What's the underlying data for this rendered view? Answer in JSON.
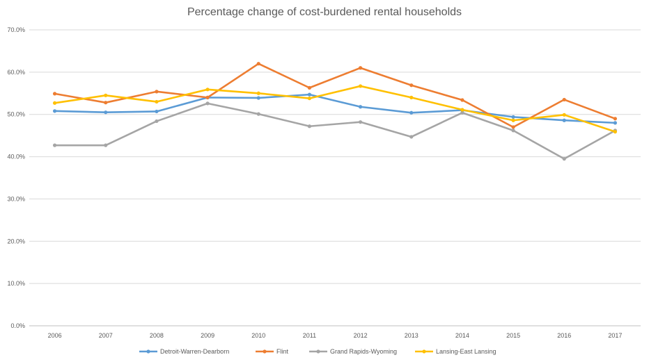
{
  "chart_data": {
    "type": "line",
    "title": "Percentage change of cost-burdened rental households",
    "xlabel": "",
    "ylabel": "",
    "categories": [
      "2006",
      "2007",
      "2008",
      "2009",
      "2010",
      "2011",
      "2012",
      "2013",
      "2014",
      "2015",
      "2016",
      "2017"
    ],
    "y_ticks": [
      "0.0%",
      "10.0%",
      "20.0%",
      "30.0%",
      "40.0%",
      "50.0%",
      "60.0%",
      "70.0%"
    ],
    "ylim": [
      0,
      70
    ],
    "grid": true,
    "legend_position": "bottom",
    "series": [
      {
        "name": "Detroit-Warren-Dearborn",
        "color": "#5b9bd5",
        "values": [
          50.8,
          50.5,
          50.7,
          54.0,
          53.9,
          54.7,
          51.8,
          50.4,
          51.0,
          49.4,
          48.6,
          48.0
        ]
      },
      {
        "name": "Flint",
        "color": "#ed7d31",
        "values": [
          54.9,
          52.8,
          55.4,
          54.0,
          62.0,
          56.3,
          61.0,
          56.9,
          53.4,
          47.0,
          53.5,
          49.0
        ]
      },
      {
        "name": "Grand Rapids-Wyoming",
        "color": "#a5a5a5",
        "values": [
          42.7,
          42.7,
          48.4,
          52.6,
          50.1,
          47.2,
          48.2,
          44.7,
          50.4,
          46.2,
          39.5,
          46.2
        ]
      },
      {
        "name": "Lansing-East Lansing",
        "color": "#ffc000",
        "values": [
          52.7,
          54.5,
          53.0,
          55.9,
          55.0,
          53.8,
          56.7,
          54.0,
          51.1,
          48.6,
          49.9,
          45.9
        ]
      }
    ]
  }
}
